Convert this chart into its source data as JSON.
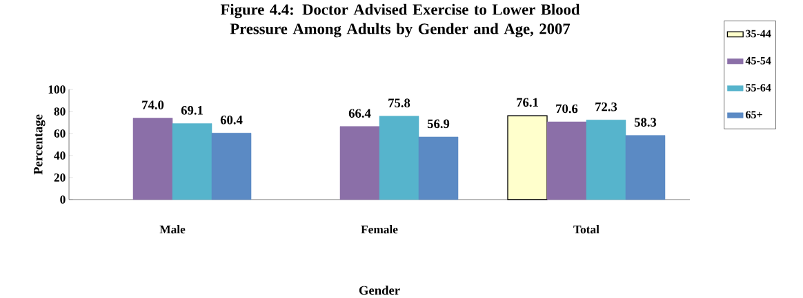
{
  "chart_data": {
    "type": "bar",
    "title": "Figure 4.4:  Doctor Advised Exercise to Lower Blood Pressure Among Adults by Gender and Age, 2007",
    "xlabel": "Gender",
    "ylabel": "Percentage",
    "categories": [
      "Male",
      "Female",
      "Total"
    ],
    "series": [
      {
        "name": "35-44",
        "color": "#ffffcc",
        "values": [
          null,
          null,
          76.1
        ],
        "value_labels": [
          null,
          null,
          "76.1"
        ]
      },
      {
        "name": "45-54",
        "color": "#8b6fa8",
        "values": [
          74.0,
          66.4,
          70.6
        ],
        "value_labels": [
          "74.0",
          "66.4",
          "70.6"
        ]
      },
      {
        "name": "55-64",
        "color": "#56b4cc",
        "values": [
          69.1,
          75.8,
          72.3
        ],
        "value_labels": [
          "69.1",
          "75.8",
          "72.3"
        ]
      },
      {
        "name": "65+",
        "color": "#5b8ac4",
        "values": [
          60.4,
          56.9,
          58.3
        ],
        "value_labels": [
          "60.4",
          "56.9",
          "58.3"
        ]
      }
    ],
    "ylim": [
      0,
      100
    ],
    "yticks": [
      0,
      20,
      40,
      60,
      80,
      100
    ],
    "legend": "right"
  }
}
